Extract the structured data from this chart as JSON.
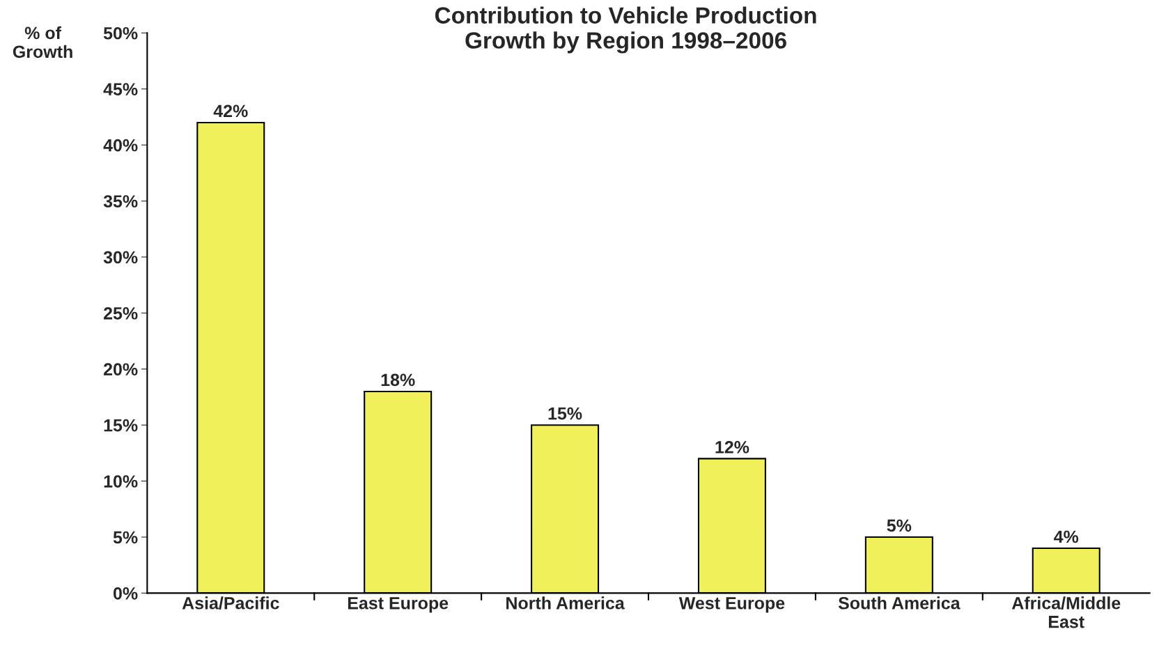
{
  "chart_data": {
    "type": "bar",
    "title": "Contribution to Vehicle Production\nGrowth by Region 1998–2006",
    "ylabel": "% of\nGrowth",
    "categories": [
      "Asia/Pacific",
      "East Europe",
      "North America",
      "West Europe",
      "South America",
      "Africa/Middle\nEast"
    ],
    "values": [
      42,
      18,
      15,
      12,
      5,
      4
    ],
    "value_labels": [
      "42%",
      "18%",
      "15%",
      "12%",
      "5%",
      "4%"
    ],
    "color": "#f0f05a",
    "ylim": [
      0,
      50
    ],
    "yticks": [
      {
        "value": 0,
        "label": "0%"
      },
      {
        "value": 5,
        "label": "5%"
      },
      {
        "value": 10,
        "label": "10%"
      },
      {
        "value": 15,
        "label": "15%"
      },
      {
        "value": 20,
        "label": "20%"
      },
      {
        "value": 25,
        "label": "25%"
      },
      {
        "value": 30,
        "label": "30%"
      },
      {
        "value": 35,
        "label": "35%"
      },
      {
        "value": 40,
        "label": "40%"
      },
      {
        "value": 45,
        "label": "45%"
      },
      {
        "value": 50,
        "label": "50%"
      }
    ],
    "grid": false,
    "legend": false
  }
}
